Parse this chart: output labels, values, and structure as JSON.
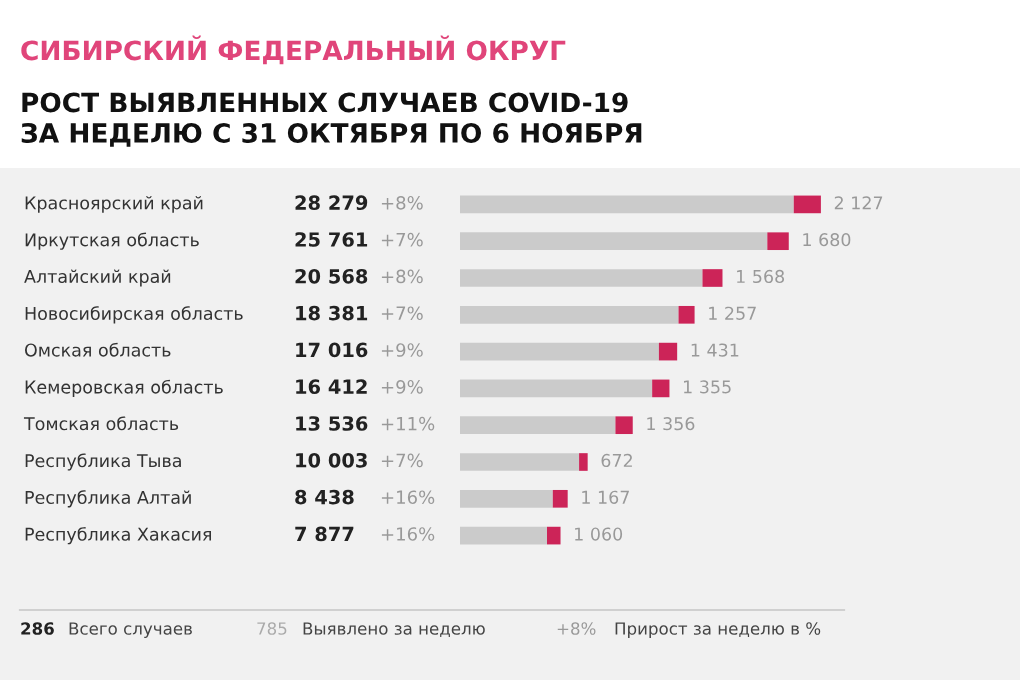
{
  "chart_data": {
    "type": "bar",
    "orientation": "horizontal",
    "stacked": true,
    "title": "СИБИРСКИЙ ФЕДЕРАЛЬНЫЙ ОКРУГ",
    "subtitle": "РОСТ ВЫЯВЛЕННЫХ СЛУЧАЕВ COVID-19\nЗА НЕДЕЛЮ С 31 ОКТЯБРЯ ПО 6 НОЯБРЯ",
    "categories": [
      "Красноярский край",
      "Иркутская область",
      "Алтайский край",
      "Новосибирская область",
      "Омская область",
      "Кемеровская область",
      "Томская область",
      "Республика Тыва",
      "Республика Алтай",
      "Республика Хакасия"
    ],
    "series": [
      {
        "color": "#cbcbcb",
        "values": [
          26152,
          24081,
          19000,
          17124,
          15585,
          15057,
          12180,
          9331,
          7271,
          6817
        ]
      },
      {
        "color": "#cc2458",
        "values": [
          2127,
          1680,
          1568,
          1257,
          1431,
          1355,
          1356,
          672,
          1167,
          1060
        ],
        "value_labels": [
          "2 127",
          "1 680",
          "1 568",
          "1 257",
          "1 431",
          "1 355",
          "1 356",
          "672",
          "1 167",
          "1 060"
        ]
      }
    ],
    "annotations": [
      "28 279",
      "25 761",
      "20 568",
      "18 381",
      "17 016",
      "16 412",
      "13 536",
      "10 003",
      "8 438",
      "7 877",
      "+8%",
      "+7%",
      "+8%",
      "+7%",
      "+9%",
      "+9%",
      "+11%",
      "+7%",
      "+16%",
      "+16%",
      "286",
      "Всего случаев",
      "785",
      "Выявлено за неделю",
      "+8%",
      "Прирост за неделю в %"
    ],
    "legend": false
  }
}
